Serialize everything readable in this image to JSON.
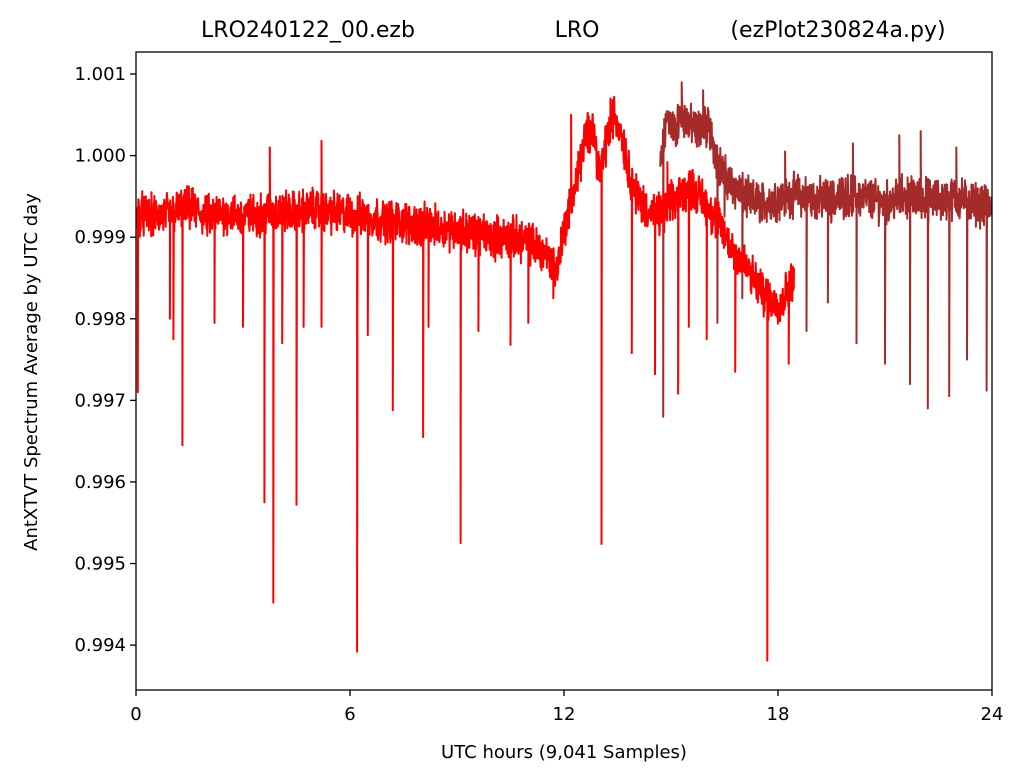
{
  "chart_data": {
    "type": "line",
    "title_parts": [
      "LRO240122_00.ezb",
      "LRO",
      "(ezPlot230824a.py)"
    ],
    "xlabel": "UTC hours  (9,041 Samples)",
    "ylabel": "AntXTVT Spectrum Average by UTC day",
    "xlim": [
      0,
      24
    ],
    "ylim": [
      0.99345,
      1.00127
    ],
    "xticks": [
      0,
      6,
      12,
      18,
      24
    ],
    "xtick_labels": [
      "0",
      "6",
      "12",
      "18",
      "24"
    ],
    "yticks": [
      0.994,
      0.995,
      0.996,
      0.997,
      0.998,
      0.999,
      1.0,
      1.001
    ],
    "ytick_labels": [
      "0.994",
      "0.995",
      "0.996",
      "0.997",
      "0.998",
      "0.999",
      "1.000",
      "1.001"
    ],
    "grid": false,
    "legend": false,
    "series": [
      {
        "color": "#a52a2a",
        "x": [
          14.7,
          14.9,
          15.1,
          15.3,
          15.5,
          15.7,
          15.9,
          16.1,
          16.3,
          16.5,
          16.8,
          17.2,
          17.6,
          18.0,
          18.5,
          19.0,
          19.5,
          20.0,
          20.5,
          21.0,
          21.5,
          22.0,
          22.5,
          23.0,
          23.5,
          24.0
        ],
        "y": [
          0.99985,
          1.0005,
          1.0003,
          1.0005,
          1.0004,
          1.0003,
          1.0004,
          1.0003,
          0.99995,
          0.99975,
          0.9996,
          0.99945,
          0.99942,
          0.99948,
          0.99952,
          0.99948,
          0.99945,
          0.99952,
          0.99948,
          0.99942,
          0.9995,
          0.99948,
          0.99945,
          0.99948,
          0.99942,
          0.99935
        ],
        "spikes": [
          [
            14.78,
            0.9968
          ],
          [
            16.3,
            0.99795
          ],
          [
            17.0,
            0.99825
          ],
          [
            18.8,
            0.99785
          ],
          [
            19.4,
            0.9982
          ],
          [
            20.2,
            0.9977
          ],
          [
            21.0,
            0.99745
          ],
          [
            21.7,
            0.9972
          ],
          [
            22.2,
            0.9969
          ],
          [
            22.8,
            0.99705
          ],
          [
            23.3,
            0.9975
          ],
          [
            23.85,
            0.99712
          ],
          [
            15.3,
            1.0009
          ],
          [
            15.9,
            1.0008
          ],
          [
            16.5,
            0.99925
          ],
          [
            18.2,
            1.00005
          ],
          [
            20.1,
            1.00015
          ],
          [
            21.4,
            1.00025
          ],
          [
            22.0,
            1.0003
          ],
          [
            23.0,
            1.0001
          ]
        ]
      },
      {
        "color": "#ff0000",
        "x": [
          0.0,
          0.5,
          1.0,
          1.5,
          2.0,
          2.5,
          3.0,
          3.5,
          4.0,
          4.5,
          5.0,
          5.5,
          6.0,
          6.5,
          7.0,
          7.5,
          8.0,
          8.5,
          9.0,
          9.5,
          10.0,
          10.5,
          11.0,
          11.5,
          11.8,
          12.0,
          12.3,
          12.6,
          12.8,
          13.0,
          13.2,
          13.4,
          13.6,
          13.8,
          14.0,
          14.3,
          14.6,
          15.0,
          15.3,
          15.6,
          16.0,
          16.3,
          16.6,
          17.0,
          17.3,
          17.6,
          17.9,
          18.1,
          18.3,
          18.45
        ],
        "y": [
          0.9993,
          0.99925,
          0.9993,
          0.99935,
          0.99925,
          0.9993,
          0.99925,
          0.99928,
          0.99932,
          0.9993,
          0.99935,
          0.9993,
          0.99928,
          0.99925,
          0.9992,
          0.99918,
          0.99915,
          0.99912,
          0.9991,
          0.99905,
          0.999,
          0.999,
          0.99895,
          0.9988,
          0.9986,
          0.9991,
          0.9996,
          1.0002,
          1.0004,
          0.99975,
          1.0002,
          1.0005,
          1.0003,
          0.99985,
          0.99955,
          0.99935,
          0.99925,
          0.9994,
          0.99955,
          0.9996,
          0.9994,
          0.9992,
          0.99895,
          0.9987,
          0.9985,
          0.9983,
          0.9982,
          0.9982,
          0.9984,
          0.9985
        ],
        "spikes": [
          [
            0.05,
            0.9971
          ],
          [
            0.95,
            0.998
          ],
          [
            1.3,
            0.99645
          ],
          [
            1.05,
            0.99775
          ],
          [
            2.2,
            0.99795
          ],
          [
            3.0,
            0.9979
          ],
          [
            3.6,
            0.99575
          ],
          [
            3.85,
            0.99452
          ],
          [
            4.1,
            0.9977
          ],
          [
            4.5,
            0.99572
          ],
          [
            4.7,
            0.9979
          ],
          [
            5.2,
            0.9979
          ],
          [
            6.2,
            0.99392
          ],
          [
            6.5,
            0.9978
          ],
          [
            7.2,
            0.99688
          ],
          [
            8.05,
            0.99655
          ],
          [
            8.2,
            0.9979
          ],
          [
            9.1,
            0.99525
          ],
          [
            9.6,
            0.99785
          ],
          [
            10.5,
            0.99768
          ],
          [
            11.0,
            0.99795
          ],
          [
            11.7,
            0.99825
          ],
          [
            13.05,
            0.99524
          ],
          [
            13.9,
            0.99758
          ],
          [
            14.55,
            0.99732
          ],
          [
            15.2,
            0.99708
          ],
          [
            15.5,
            0.9979
          ],
          [
            16.0,
            0.99775
          ],
          [
            16.8,
            0.99735
          ],
          [
            17.7,
            0.99381
          ],
          [
            18.3,
            0.99745
          ],
          [
            5.2,
            1.00018
          ],
          [
            3.75,
            1.0001
          ],
          [
            12.2,
            1.0005
          ],
          [
            13.3,
            1.0007
          ],
          [
            14.9,
            0.99992
          ]
        ]
      }
    ]
  }
}
